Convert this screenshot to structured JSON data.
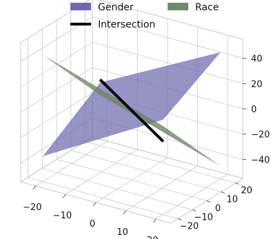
{
  "chart_data": {
    "type": "surface3d",
    "title": "",
    "xlabel": "",
    "ylabel": "",
    "zlabel": "",
    "xlim": [
      -25,
      25
    ],
    "ylim": [
      -25,
      25
    ],
    "zlim": [
      -55,
      55
    ],
    "xticks": [
      -20,
      -10,
      0,
      10,
      20
    ],
    "yticks": [
      -20,
      -10,
      0,
      10,
      20
    ],
    "zticks": [
      -40,
      -20,
      0,
      20,
      40
    ],
    "xtick_labels": [
      "−20",
      "−10",
      "0",
      "10",
      "20"
    ],
    "ytick_labels": [
      "−20",
      "−10",
      "0",
      "10",
      "20"
    ],
    "ztick_labels": [
      "−40",
      "−20",
      "0",
      "20",
      "40"
    ],
    "grid": true,
    "legend": {
      "placement": "top",
      "entries": [
        {
          "label": "Gender",
          "color": "#6e6aaf",
          "kind": "patch"
        },
        {
          "label": "Race",
          "color": "#6f8a6c",
          "kind": "patch"
        },
        {
          "label": "Intersection",
          "color": "#000000",
          "kind": "line"
        }
      ]
    },
    "series": [
      {
        "name": "Gender",
        "kind": "plane",
        "color": "#6e6aaf",
        "opacity": 0.72,
        "corners": [
          [
            -20,
            -20,
            -35
          ],
          [
            20,
            -20,
            20
          ],
          [
            20,
            20,
            45
          ],
          [
            -20,
            20,
            -5
          ]
        ]
      },
      {
        "name": "Race",
        "kind": "plane",
        "color": "#6a8466",
        "opacity": 0.78,
        "corners": [
          [
            -20,
            -20,
            45
          ],
          [
            20,
            -20,
            15
          ],
          [
            20,
            20,
            -45
          ],
          [
            -20,
            20,
            -15
          ]
        ]
      },
      {
        "name": "Intersection",
        "kind": "line",
        "color": "#000000",
        "points": [
          [
            0,
            -22,
            40
          ],
          [
            0,
            22,
            -40
          ]
        ]
      }
    ]
  }
}
